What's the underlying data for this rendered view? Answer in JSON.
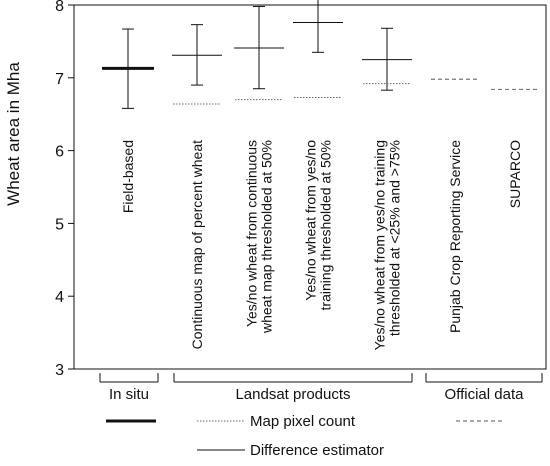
{
  "chart_data": {
    "type": "errorbar",
    "title": "",
    "xlabel": "",
    "ylabel": "Wheat area in Mha",
    "ylim": [
      3,
      8
    ],
    "yticks": [
      3,
      4,
      5,
      6,
      7,
      8
    ],
    "grid": false,
    "legend_position": "bottom",
    "categories": [
      {
        "label": "Field-based",
        "group": "In situ",
        "estimate_type": "Field-based",
        "value": 7.13,
        "error_low": 6.58,
        "error_high": 7.67
      },
      {
        "label": "Continuous map of percent wheat",
        "group": "Landsat products",
        "estimate_type": "Difference estimator",
        "value": 7.31,
        "error_low": 6.9,
        "error_high": 7.73,
        "map_pixel_count": 6.64
      },
      {
        "label_lines": [
          "Yes/no wheat from continuous",
          "wheat map thresholded at 50%"
        ],
        "group": "Landsat products",
        "estimate_type": "Difference estimator",
        "value": 7.41,
        "error_low": 6.85,
        "error_high": 7.98,
        "map_pixel_count": 6.7
      },
      {
        "label_lines": [
          "Yes/no wheat from yes/no",
          "training thresholded at 50%"
        ],
        "group": "Landsat products",
        "estimate_type": "Difference estimator",
        "value": 7.76,
        "error_low": 7.35,
        "error_high": 8.18,
        "map_pixel_count": 6.73
      },
      {
        "label_lines": [
          "Yes/no wheat from yes/no training",
          "thresholded at <25% and >75%"
        ],
        "group": "Landsat products",
        "estimate_type": "Difference estimator",
        "value": 7.25,
        "error_low": 6.83,
        "error_high": 7.68,
        "map_pixel_count": 6.92
      },
      {
        "label": "Punjab Crop Reporting Service",
        "group": "Official data",
        "estimate_type": "Official data",
        "value": 6.98
      },
      {
        "label": "SUPARCO",
        "group": "Official data",
        "estimate_type": "Official data",
        "value": 6.84
      }
    ],
    "groups": [
      "In situ",
      "Landsat products",
      "Official data"
    ],
    "legend": [
      {
        "key": "field",
        "style": "thick-solid",
        "label": ""
      },
      {
        "key": "pixel",
        "style": "dotted",
        "label": "Map pixel count"
      },
      {
        "key": "official",
        "style": "dashed",
        "label": ""
      },
      {
        "key": "diff",
        "style": "thin-solid",
        "label": "Difference estimator"
      }
    ],
    "colors": {
      "line": "#111111",
      "dotted": "#666666",
      "dashed": "#777777"
    }
  }
}
